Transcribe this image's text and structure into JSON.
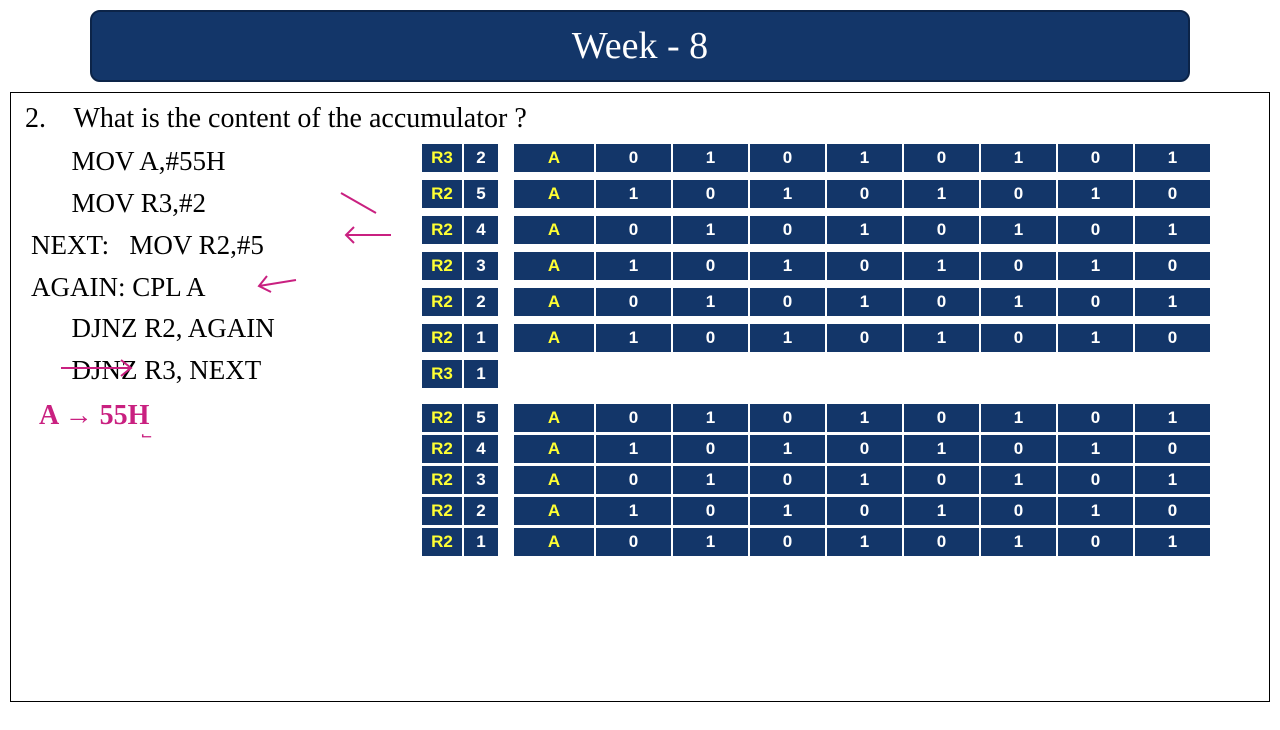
{
  "header": {
    "title": "Week - 8"
  },
  "question": {
    "number": "2.",
    "text": "What is the content of the accumulator ?"
  },
  "code": {
    "l1": "      MOV A,#55H",
    "l2": "      MOV R3,#2",
    "l3": "NEXT:   MOV R2,#5",
    "l4": "AGAIN: CPL A",
    "l5": "      DJNZ R2, AGAIN",
    "l6": "      DJNZ R3, NEXT"
  },
  "answer": {
    "text": "A → 55H"
  },
  "trace": {
    "rows": [
      {
        "reg": "R3",
        "val": "2",
        "bits": [
          "0",
          "1",
          "0",
          "1",
          "0",
          "1",
          "0",
          "1"
        ]
      },
      {
        "reg": "R2",
        "val": "5",
        "bits": [
          "1",
          "0",
          "1",
          "0",
          "1",
          "0",
          "1",
          "0"
        ]
      },
      {
        "reg": "R2",
        "val": "4",
        "bits": [
          "0",
          "1",
          "0",
          "1",
          "0",
          "1",
          "0",
          "1"
        ]
      },
      {
        "reg": "R2",
        "val": "3",
        "bits": [
          "1",
          "0",
          "1",
          "0",
          "1",
          "0",
          "1",
          "0"
        ]
      },
      {
        "reg": "R2",
        "val": "2",
        "bits": [
          "0",
          "1",
          "0",
          "1",
          "0",
          "1",
          "0",
          "1"
        ]
      },
      {
        "reg": "R2",
        "val": "1",
        "bits": [
          "1",
          "0",
          "1",
          "0",
          "1",
          "0",
          "1",
          "0"
        ]
      },
      {
        "reg": "R3",
        "val": "1",
        "bits": null
      },
      {
        "reg": "R2",
        "val": "5",
        "bits": [
          "0",
          "1",
          "0",
          "1",
          "0",
          "1",
          "0",
          "1"
        ]
      },
      {
        "reg": "R2",
        "val": "4",
        "bits": [
          "1",
          "0",
          "1",
          "0",
          "1",
          "0",
          "1",
          "0"
        ]
      },
      {
        "reg": "R2",
        "val": "3",
        "bits": [
          "0",
          "1",
          "0",
          "1",
          "0",
          "1",
          "0",
          "1"
        ]
      },
      {
        "reg": "R2",
        "val": "2",
        "bits": [
          "1",
          "0",
          "1",
          "0",
          "1",
          "0",
          "1",
          "0"
        ]
      },
      {
        "reg": "R2",
        "val": "1",
        "bits": [
          "0",
          "1",
          "0",
          "1",
          "0",
          "1",
          "0",
          "1"
        ]
      }
    ],
    "acc_label": "A"
  },
  "colors": {
    "header_bg": "#133669",
    "header_text": "#ffffff",
    "cell_bg": "#133669",
    "bit_text": "#ffffff",
    "label_text": "#ffff33",
    "answer_color": "#c92080",
    "body_text": "#000000",
    "bg": "#ffffff"
  }
}
